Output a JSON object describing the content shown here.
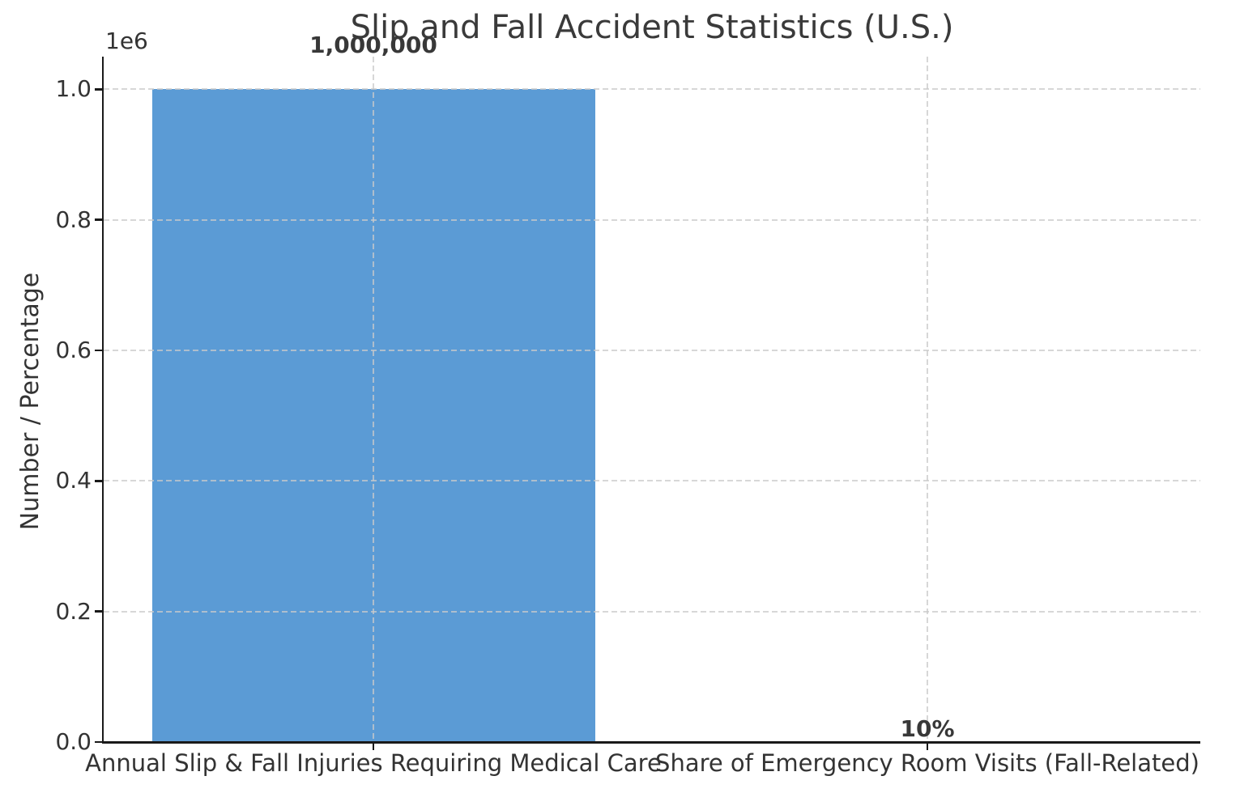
{
  "chart_data": {
    "type": "bar",
    "title": "Slip and Fall Accident Statistics (U.S.)",
    "xlabel": "",
    "ylabel": "Number / Percentage",
    "categories": [
      "Annual Slip & Fall Injuries Requiring Medical Care",
      "Share of Emergency Room Visits (Fall-Related)"
    ],
    "values": [
      1000000,
      10
    ],
    "bar_labels": [
      "1,000,000",
      "10%"
    ],
    "bar_color": "#5b9bd5",
    "ylim": [
      0,
      1050000
    ],
    "yticks": [
      0,
      200000,
      400000,
      600000,
      800000,
      1000000
    ],
    "ytick_labels": [
      "0.0",
      "0.2",
      "0.4",
      "0.6",
      "0.8",
      "1.0"
    ],
    "offset_text": "1e6",
    "grid": true,
    "grid_style": "dashed",
    "grid_color": "#cccccc",
    "legend_position": "none",
    "text_color": "#333333",
    "spine_color": "#1a1a1a"
  }
}
